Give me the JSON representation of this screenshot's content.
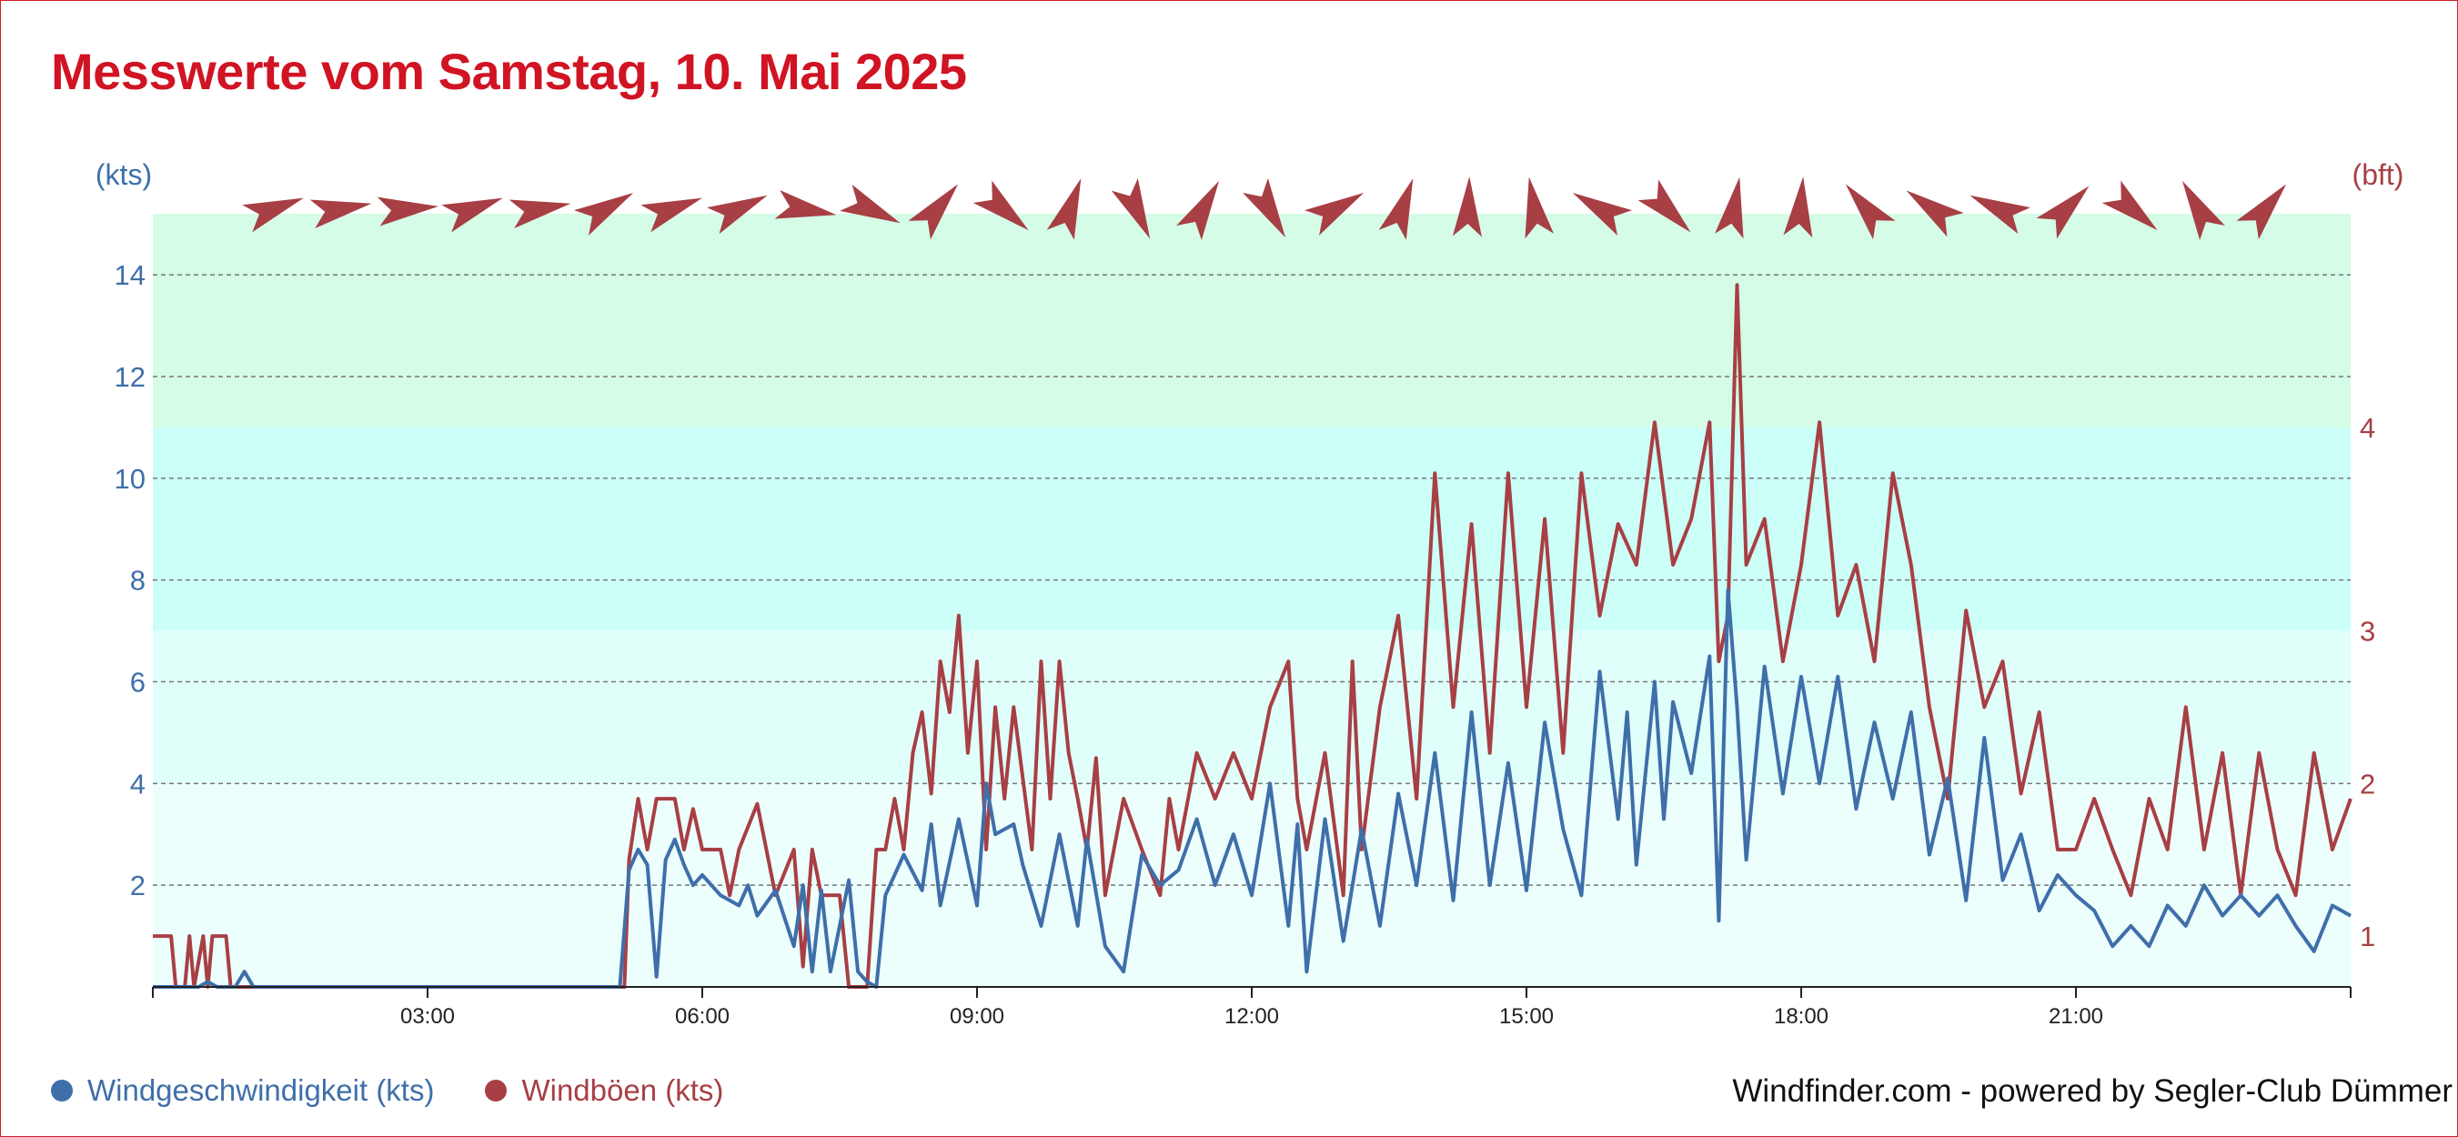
{
  "title": "Messwerte vom Samstag, 10. Mai 2025",
  "credit": "Windfinder.com - powered by Segler-Club Dümmer",
  "colors": {
    "speed": "#3f6faa",
    "gusts": "#a73f44",
    "title": "#d01423"
  },
  "legend": {
    "speed": "Windgeschwindigkeit (kts)",
    "gusts": "Windböen (kts)"
  },
  "chart_data": {
    "type": "line",
    "left_axis": {
      "unit_label": "(kts)",
      "ticks": [
        "2",
        "4",
        "6",
        "8",
        "10",
        "12",
        "14"
      ],
      "tick_values": [
        2,
        4,
        6,
        8,
        10,
        12,
        14
      ],
      "ylim": [
        0,
        15.2
      ]
    },
    "right_axis": {
      "unit_label": "(bft)",
      "ticks": [
        "1",
        "2",
        "3",
        "4"
      ],
      "tick_values_kts": [
        1,
        4,
        7,
        11
      ]
    },
    "x_axis": {
      "ticks": [
        "03:00",
        "06:00",
        "09:00",
        "12:00",
        "15:00",
        "18:00",
        "21:00"
      ],
      "tick_hours": [
        3,
        6,
        9,
        12,
        15,
        18,
        21
      ],
      "xlim_hours": [
        0,
        24
      ]
    },
    "grid": true,
    "bands": [
      {
        "from": 0,
        "to": 4,
        "color": "#edfffd"
      },
      {
        "from": 4,
        "to": 7,
        "color": "#e0fffa"
      },
      {
        "from": 7,
        "to": 11,
        "color": "#ccfff8"
      },
      {
        "from": 11,
        "to": 15.2,
        "color": "#d4fce6"
      }
    ],
    "direction_icon": "wind-direction-arrow-icon",
    "wind_directions_deg": [
      70,
      80,
      85,
      70,
      80,
      60,
      70,
      65,
      100,
      115,
      40,
      130,
      20,
      155,
      30,
      150,
      60,
      20,
      2,
      350,
      300,
      135,
      10,
      5,
      320,
      305,
      295,
      45,
      130,
      330,
      40
    ],
    "series": [
      {
        "name": "Windgeschwindigkeit (kts)",
        "key": "speed",
        "points": [
          [
            0,
            0
          ],
          [
            0.5,
            0
          ],
          [
            0.6,
            0.1
          ],
          [
            0.7,
            0
          ],
          [
            0.9,
            0
          ],
          [
            1.0,
            0.3
          ],
          [
            1.1,
            0
          ],
          [
            3.0,
            0
          ],
          [
            5.1,
            0
          ],
          [
            5.2,
            2.3
          ],
          [
            5.3,
            2.7
          ],
          [
            5.4,
            2.4
          ],
          [
            5.5,
            0.2
          ],
          [
            5.6,
            2.5
          ],
          [
            5.7,
            2.9
          ],
          [
            5.8,
            2.4
          ],
          [
            5.9,
            2.0
          ],
          [
            6.0,
            2.2
          ],
          [
            6.2,
            1.8
          ],
          [
            6.4,
            1.6
          ],
          [
            6.5,
            2.0
          ],
          [
            6.6,
            1.4
          ],
          [
            6.8,
            1.9
          ],
          [
            7.0,
            0.8
          ],
          [
            7.1,
            2.0
          ],
          [
            7.2,
            0.3
          ],
          [
            7.3,
            1.9
          ],
          [
            7.4,
            0.3
          ],
          [
            7.6,
            2.1
          ],
          [
            7.7,
            0.3
          ],
          [
            7.8,
            0.1
          ],
          [
            7.9,
            0.0
          ],
          [
            8.0,
            1.8
          ],
          [
            8.2,
            2.6
          ],
          [
            8.4,
            1.9
          ],
          [
            8.5,
            3.2
          ],
          [
            8.6,
            1.6
          ],
          [
            8.8,
            3.3
          ],
          [
            9.0,
            1.6
          ],
          [
            9.1,
            4.0
          ],
          [
            9.2,
            3.0
          ],
          [
            9.4,
            3.2
          ],
          [
            9.5,
            2.4
          ],
          [
            9.7,
            1.2
          ],
          [
            9.9,
            3.0
          ],
          [
            10.1,
            1.2
          ],
          [
            10.2,
            2.9
          ],
          [
            10.4,
            0.8
          ],
          [
            10.6,
            0.3
          ],
          [
            10.8,
            2.6
          ],
          [
            11.0,
            2.0
          ],
          [
            11.2,
            2.3
          ],
          [
            11.4,
            3.3
          ],
          [
            11.6,
            2.0
          ],
          [
            11.8,
            3.0
          ],
          [
            12.0,
            1.8
          ],
          [
            12.2,
            4.0
          ],
          [
            12.4,
            1.2
          ],
          [
            12.5,
            3.2
          ],
          [
            12.6,
            0.3
          ],
          [
            12.8,
            3.3
          ],
          [
            13.0,
            0.9
          ],
          [
            13.2,
            3.1
          ],
          [
            13.4,
            1.2
          ],
          [
            13.6,
            3.8
          ],
          [
            13.8,
            2.0
          ],
          [
            14.0,
            4.6
          ],
          [
            14.2,
            1.7
          ],
          [
            14.4,
            5.4
          ],
          [
            14.6,
            2.0
          ],
          [
            14.8,
            4.4
          ],
          [
            15.0,
            1.9
          ],
          [
            15.2,
            5.2
          ],
          [
            15.4,
            3.1
          ],
          [
            15.6,
            1.8
          ],
          [
            15.8,
            6.2
          ],
          [
            16.0,
            3.3
          ],
          [
            16.1,
            5.4
          ],
          [
            16.2,
            2.4
          ],
          [
            16.4,
            6.0
          ],
          [
            16.5,
            3.3
          ],
          [
            16.6,
            5.6
          ],
          [
            16.8,
            4.2
          ],
          [
            17.0,
            6.5
          ],
          [
            17.1,
            1.3
          ],
          [
            17.2,
            7.8
          ],
          [
            17.3,
            5.5
          ],
          [
            17.4,
            2.5
          ],
          [
            17.6,
            6.3
          ],
          [
            17.8,
            3.8
          ],
          [
            18.0,
            6.1
          ],
          [
            18.2,
            4.0
          ],
          [
            18.4,
            6.1
          ],
          [
            18.6,
            3.5
          ],
          [
            18.8,
            5.2
          ],
          [
            19.0,
            3.7
          ],
          [
            19.2,
            5.4
          ],
          [
            19.4,
            2.6
          ],
          [
            19.6,
            4.1
          ],
          [
            19.8,
            1.7
          ],
          [
            20.0,
            4.9
          ],
          [
            20.2,
            2.1
          ],
          [
            20.4,
            3.0
          ],
          [
            20.6,
            1.5
          ],
          [
            20.8,
            2.2
          ],
          [
            21.0,
            1.8
          ],
          [
            21.2,
            1.5
          ],
          [
            21.4,
            0.8
          ],
          [
            21.6,
            1.2
          ],
          [
            21.8,
            0.8
          ],
          [
            22.0,
            1.6
          ],
          [
            22.2,
            1.2
          ],
          [
            22.4,
            2.0
          ],
          [
            22.6,
            1.4
          ],
          [
            22.8,
            1.8
          ],
          [
            23.0,
            1.4
          ],
          [
            23.2,
            1.8
          ],
          [
            23.4,
            1.2
          ],
          [
            23.6,
            0.7
          ],
          [
            23.8,
            1.6
          ],
          [
            24.0,
            1.4
          ]
        ]
      },
      {
        "name": "Windböen (kts)",
        "key": "gusts",
        "points": [
          [
            0,
            1.0
          ],
          [
            0.2,
            1.0
          ],
          [
            0.25,
            0
          ],
          [
            0.35,
            0
          ],
          [
            0.4,
            1.0
          ],
          [
            0.45,
            0
          ],
          [
            0.55,
            1.0
          ],
          [
            0.6,
            0
          ],
          [
            0.65,
            1.0
          ],
          [
            0.8,
            1.0
          ],
          [
            0.85,
            0
          ],
          [
            1.0,
            0
          ],
          [
            3.0,
            0
          ],
          [
            5.15,
            0
          ],
          [
            5.2,
            2.5
          ],
          [
            5.3,
            3.7
          ],
          [
            5.4,
            2.7
          ],
          [
            5.5,
            3.7
          ],
          [
            5.7,
            3.7
          ],
          [
            5.8,
            2.7
          ],
          [
            5.9,
            3.5
          ],
          [
            6.0,
            2.7
          ],
          [
            6.2,
            2.7
          ],
          [
            6.3,
            1.8
          ],
          [
            6.4,
            2.7
          ],
          [
            6.6,
            3.6
          ],
          [
            6.8,
            1.8
          ],
          [
            7.0,
            2.7
          ],
          [
            7.1,
            0.4
          ],
          [
            7.2,
            2.7
          ],
          [
            7.3,
            1.8
          ],
          [
            7.5,
            1.8
          ],
          [
            7.6,
            0
          ],
          [
            7.8,
            0
          ],
          [
            7.9,
            2.7
          ],
          [
            8.0,
            2.7
          ],
          [
            8.1,
            3.7
          ],
          [
            8.2,
            2.7
          ],
          [
            8.3,
            4.6
          ],
          [
            8.4,
            5.4
          ],
          [
            8.5,
            3.8
          ],
          [
            8.6,
            6.4
          ],
          [
            8.7,
            5.4
          ],
          [
            8.8,
            7.3
          ],
          [
            8.9,
            4.6
          ],
          [
            9.0,
            6.4
          ],
          [
            9.1,
            2.7
          ],
          [
            9.2,
            5.5
          ],
          [
            9.3,
            3.7
          ],
          [
            9.4,
            5.5
          ],
          [
            9.6,
            2.7
          ],
          [
            9.7,
            6.4
          ],
          [
            9.8,
            3.7
          ],
          [
            9.9,
            6.4
          ],
          [
            10.0,
            4.6
          ],
          [
            10.1,
            3.7
          ],
          [
            10.2,
            2.7
          ],
          [
            10.3,
            4.5
          ],
          [
            10.4,
            1.8
          ],
          [
            10.6,
            3.7
          ],
          [
            10.8,
            2.7
          ],
          [
            11.0,
            1.8
          ],
          [
            11.1,
            3.7
          ],
          [
            11.2,
            2.7
          ],
          [
            11.4,
            4.6
          ],
          [
            11.6,
            3.7
          ],
          [
            11.8,
            4.6
          ],
          [
            12.0,
            3.7
          ],
          [
            12.2,
            5.5
          ],
          [
            12.4,
            6.4
          ],
          [
            12.5,
            3.7
          ],
          [
            12.6,
            2.7
          ],
          [
            12.8,
            4.6
          ],
          [
            13.0,
            1.8
          ],
          [
            13.1,
            6.4
          ],
          [
            13.2,
            2.7
          ],
          [
            13.4,
            5.5
          ],
          [
            13.6,
            7.3
          ],
          [
            13.8,
            3.7
          ],
          [
            14.0,
            10.1
          ],
          [
            14.2,
            5.5
          ],
          [
            14.4,
            9.1
          ],
          [
            14.6,
            4.6
          ],
          [
            14.8,
            10.1
          ],
          [
            15.0,
            5.5
          ],
          [
            15.2,
            9.2
          ],
          [
            15.4,
            4.6
          ],
          [
            15.6,
            10.1
          ],
          [
            15.8,
            7.3
          ],
          [
            16.0,
            9.1
          ],
          [
            16.2,
            8.3
          ],
          [
            16.4,
            11.1
          ],
          [
            16.6,
            8.3
          ],
          [
            16.8,
            9.2
          ],
          [
            17.0,
            11.1
          ],
          [
            17.1,
            6.4
          ],
          [
            17.2,
            7.3
          ],
          [
            17.3,
            13.8
          ],
          [
            17.4,
            8.3
          ],
          [
            17.6,
            9.2
          ],
          [
            17.8,
            6.4
          ],
          [
            18.0,
            8.3
          ],
          [
            18.2,
            11.1
          ],
          [
            18.4,
            7.3
          ],
          [
            18.6,
            8.3
          ],
          [
            18.8,
            6.4
          ],
          [
            19.0,
            10.1
          ],
          [
            19.2,
            8.3
          ],
          [
            19.4,
            5.5
          ],
          [
            19.6,
            3.7
          ],
          [
            19.8,
            7.4
          ],
          [
            20.0,
            5.5
          ],
          [
            20.2,
            6.4
          ],
          [
            20.4,
            3.8
          ],
          [
            20.6,
            5.4
          ],
          [
            20.8,
            2.7
          ],
          [
            21.0,
            2.7
          ],
          [
            21.2,
            3.7
          ],
          [
            21.4,
            2.7
          ],
          [
            21.6,
            1.8
          ],
          [
            21.8,
            3.7
          ],
          [
            22.0,
            2.7
          ],
          [
            22.2,
            5.5
          ],
          [
            22.4,
            2.7
          ],
          [
            22.6,
            4.6
          ],
          [
            22.8,
            1.8
          ],
          [
            23.0,
            4.6
          ],
          [
            23.2,
            2.7
          ],
          [
            23.4,
            1.8
          ],
          [
            23.6,
            4.6
          ],
          [
            23.8,
            2.7
          ],
          [
            24.0,
            3.7
          ]
        ]
      }
    ]
  }
}
